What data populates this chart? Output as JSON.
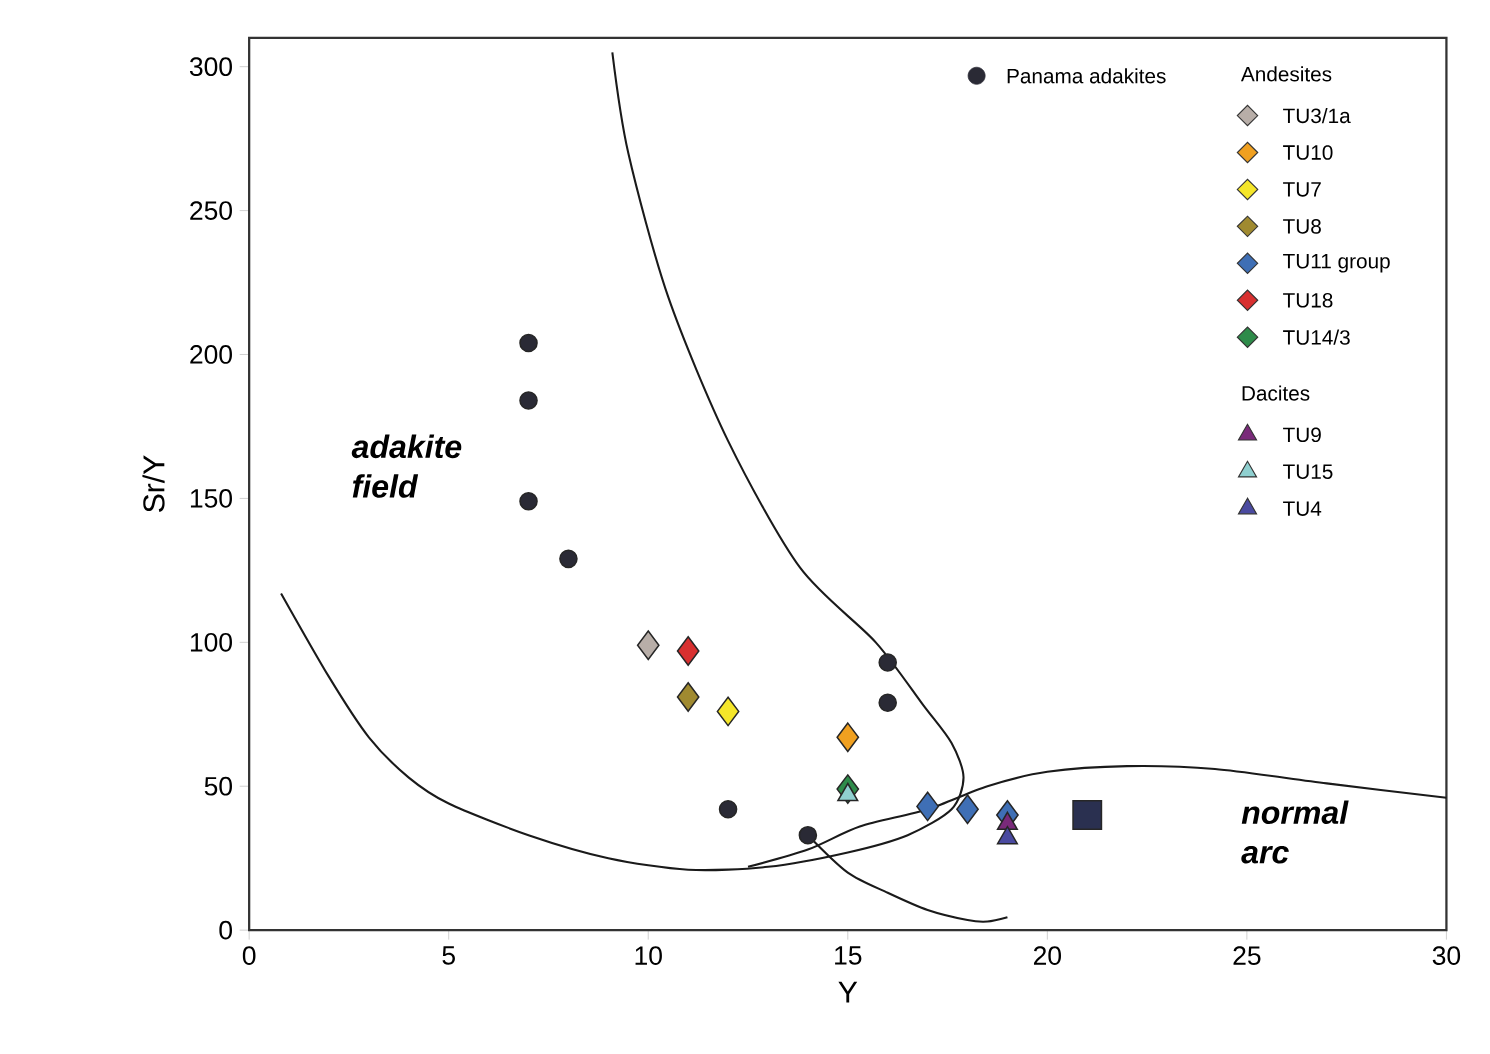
{
  "chart_data": {
    "type": "scatter",
    "xlabel": "Y",
    "ylabel": "Sr/Y",
    "xlim": [
      0,
      30
    ],
    "ylim": [
      0,
      310
    ],
    "xticks": [
      0,
      5,
      10,
      15,
      20,
      25,
      30
    ],
    "yticks": [
      0,
      50,
      100,
      150,
      200,
      250,
      300
    ],
    "legend": "top right",
    "annotations": [
      "adakite field",
      "normal arc",
      "Andesites",
      "Dacites"
    ],
    "series": [
      {
        "type": "line",
        "color": "#1a1a1a",
        "marker": "none",
        "line_style": "solid",
        "x": [
          0.8,
          2,
          3,
          4,
          5,
          7,
          9,
          11,
          13,
          15,
          16.5,
          17.6,
          17.9,
          17.6,
          16.9,
          15.7,
          13.8,
          12,
          10.5,
          9.5,
          9.1
        ],
        "values": [
          117,
          88,
          67,
          53,
          44,
          33,
          25,
          21,
          22,
          27,
          33,
          42,
          53,
          65,
          78,
          100,
          126,
          170,
          220,
          270,
          305
        ]
      },
      {
        "type": "line",
        "color": "#1a1a1a",
        "marker": "none",
        "line_style": "solid",
        "x": [
          12.5,
          14,
          15.3,
          17,
          18.5,
          20,
          22,
          24.2,
          27,
          30
        ],
        "values": [
          22,
          28,
          36,
          42,
          50,
          55,
          57,
          56,
          51,
          46
        ]
      },
      {
        "type": "line",
        "color": "#1a1a1a",
        "marker": "none",
        "line_style": "solid",
        "x": [
          14,
          15,
          16,
          17,
          18,
          18.5,
          19
        ],
        "values": [
          33,
          20,
          13,
          7,
          3.5,
          3,
          4.5
        ]
      },
      {
        "name": "Panama adakites",
        "color": "#2a2a35",
        "marker": "circle",
        "x": [
          7,
          7,
          7,
          8,
          12,
          16,
          16,
          14
        ],
        "values": [
          204,
          184,
          149,
          129,
          42,
          93,
          79,
          33
        ]
      },
      {
        "name": "TU3/1a",
        "color": "#b8aea8",
        "marker": "diamond",
        "x": [
          10
        ],
        "values": [
          99
        ]
      },
      {
        "name": "TU10",
        "color": "#f0a020",
        "marker": "diamond",
        "x": [
          15
        ],
        "values": [
          67
        ]
      },
      {
        "name": "TU7",
        "color": "#f5e62a",
        "marker": "diamond",
        "x": [
          12
        ],
        "values": [
          76
        ]
      },
      {
        "name": "TU8",
        "color": "#a08a30",
        "marker": "diamond",
        "x": [
          11
        ],
        "values": [
          81
        ]
      },
      {
        "name": "TU11 group",
        "color": "#3f6fb5",
        "marker": "diamond",
        "x": [
          17,
          18,
          19
        ],
        "values": [
          43,
          42,
          40
        ]
      },
      {
        "name": "TU18",
        "color": "#d83030",
        "marker": "diamond",
        "x": [
          11
        ],
        "values": [
          97
        ]
      },
      {
        "name": "TU14/3",
        "color": "#2e8b4a",
        "marker": "diamond",
        "x": [
          15
        ],
        "values": [
          49
        ]
      },
      {
        "name": "TU9",
        "color": "#7a2a7a",
        "marker": "triangle",
        "x": [
          19
        ],
        "values": [
          37
        ]
      },
      {
        "name": "TU15",
        "color": "#8fd0d0",
        "marker": "triangle",
        "x": [
          15
        ],
        "values": [
          47
        ]
      },
      {
        "name": "TU4",
        "color": "#4a4aa0",
        "marker": "triangle",
        "x": [
          19
        ],
        "values": [
          32
        ]
      },
      {
        "color": "#2a3050",
        "marker": "square",
        "x": [
          21
        ],
        "values": [
          40
        ]
      }
    ]
  }
}
